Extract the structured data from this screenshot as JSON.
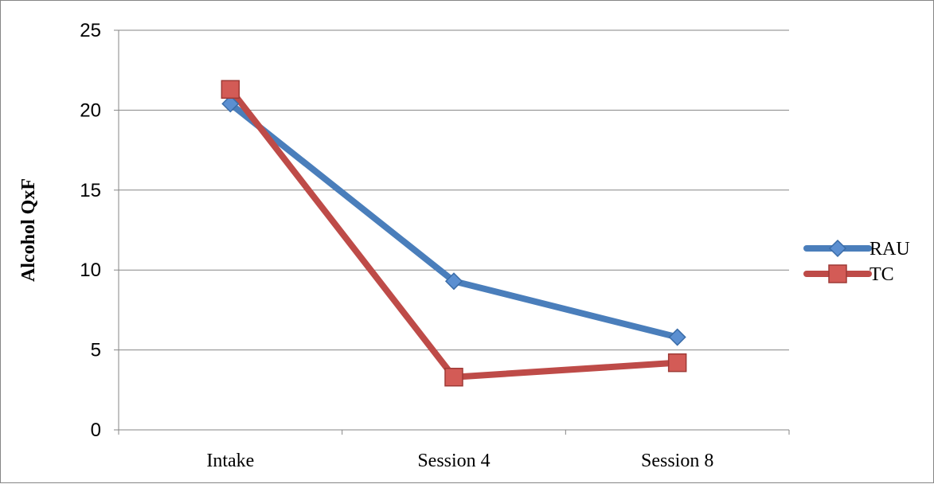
{
  "chart_data": {
    "type": "line",
    "categories": [
      "Intake",
      "Session 4",
      "Session 8"
    ],
    "series": [
      {
        "name": "RAU",
        "values": [
          20.4,
          9.3,
          5.8
        ],
        "color": "#4A7EBB",
        "marker": "diamond"
      },
      {
        "name": "TC",
        "values": [
          21.3,
          3.3,
          4.2
        ],
        "color": "#BE4B48",
        "marker": "square"
      }
    ],
    "title": "",
    "xlabel": "",
    "ylabel": "Alcohol QxF",
    "ylim": [
      0,
      25
    ],
    "yticks": [
      "0",
      "5",
      "10",
      "15",
      "20",
      "25"
    ],
    "grid": true,
    "legend_position": "right"
  }
}
